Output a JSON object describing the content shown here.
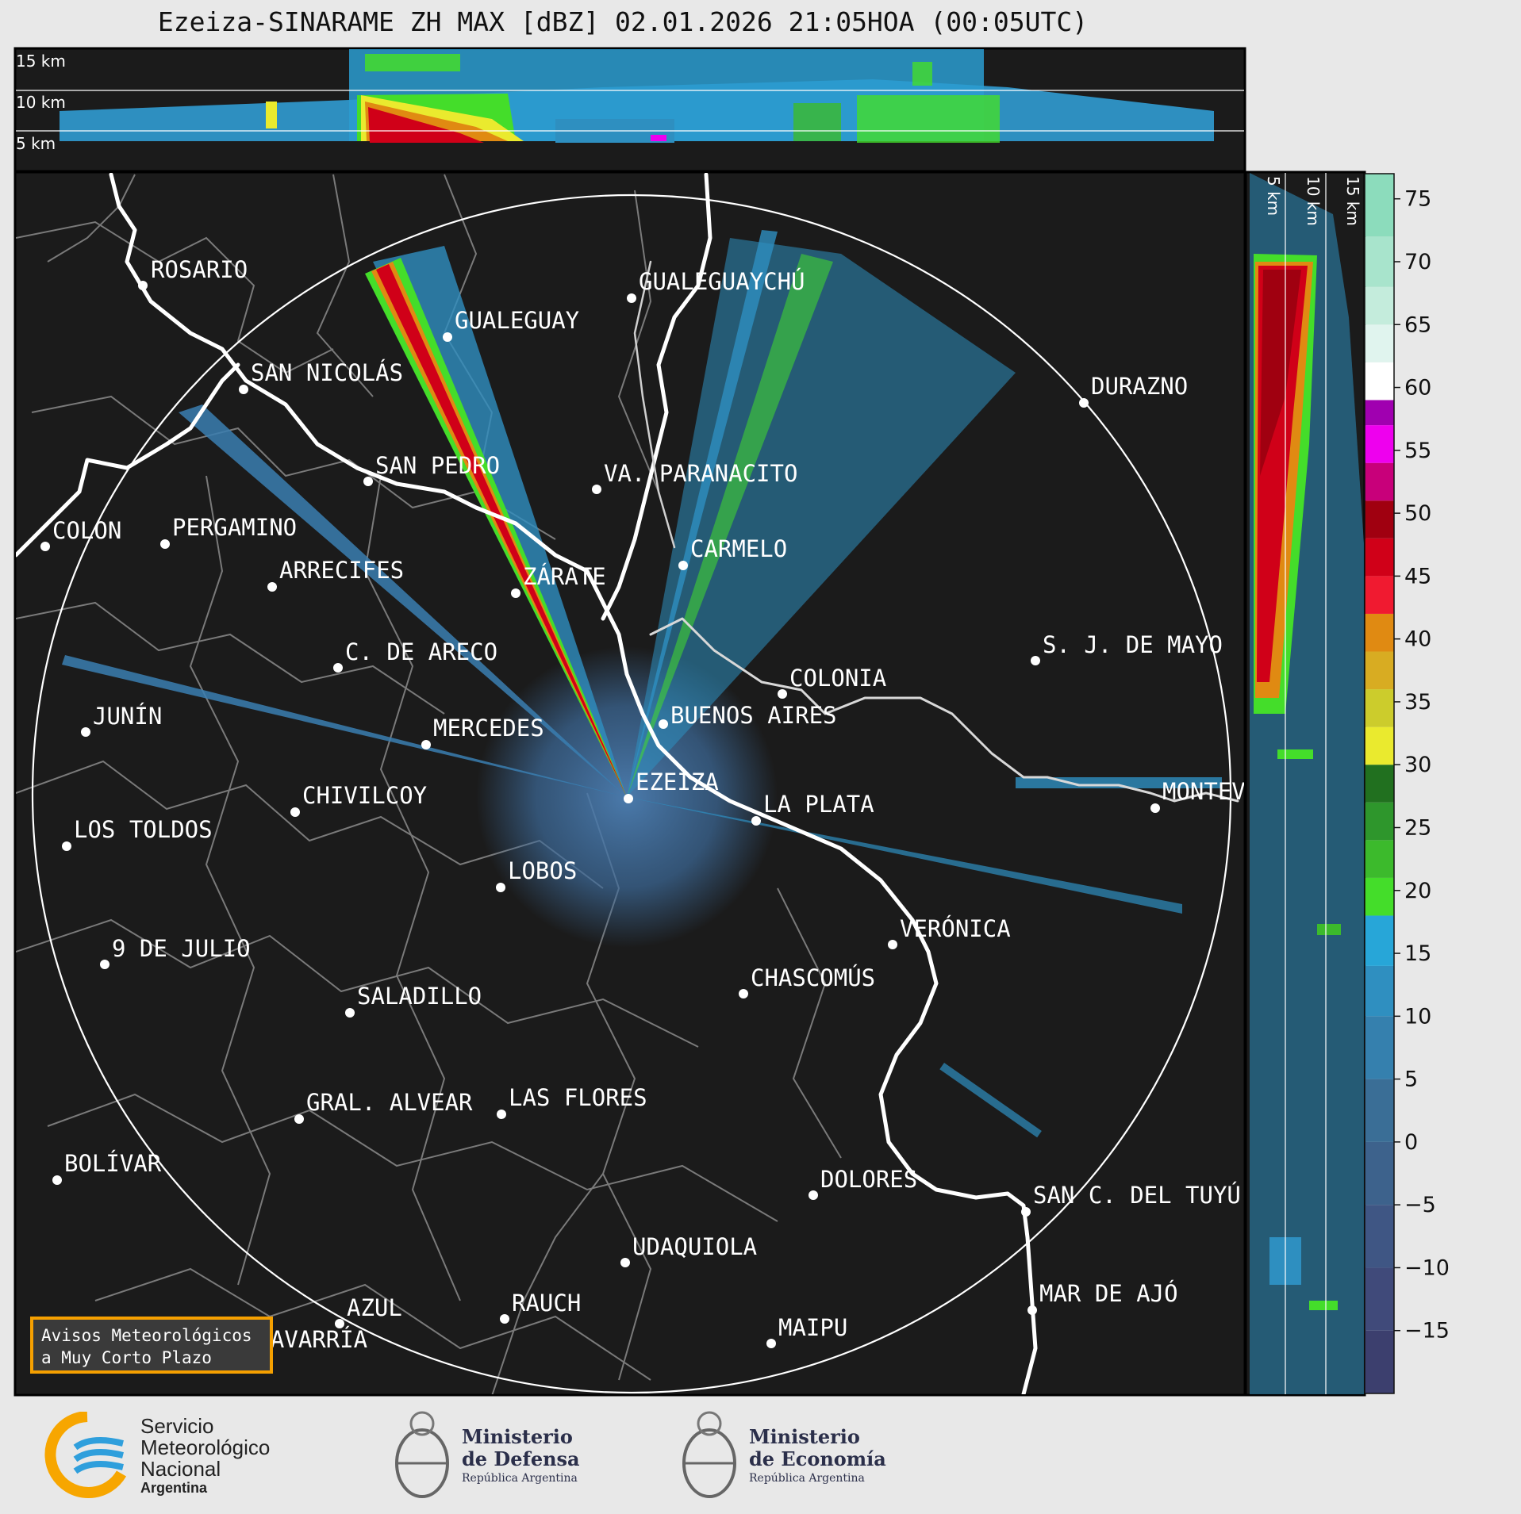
{
  "title": "Ezeiza-SINARAME ZH MAX [dBZ] 02.01.2026 21:05HOA (00:05UTC)",
  "top_panel_labels": [
    "15 km",
    "10 km",
    "5 km"
  ],
  "side_panel_labels": [
    "5 km",
    "10 km",
    "15 km"
  ],
  "cities": [
    {
      "name": "ROSARIO"
    },
    {
      "name": "GUALEGUAYCHÚ"
    },
    {
      "name": "GUALEGUAY"
    },
    {
      "name": "SAN NICOLÁS"
    },
    {
      "name": "DURAZNO"
    },
    {
      "name": "SAN PEDRO"
    },
    {
      "name": "VA. PARANACITO"
    },
    {
      "name": "COLON"
    },
    {
      "name": "PERGAMINO"
    },
    {
      "name": "CARMELO"
    },
    {
      "name": "ARRECIFES"
    },
    {
      "name": "ZÁRATE"
    },
    {
      "name": "S. J. DE MAYO"
    },
    {
      "name": "C. DE ARECO"
    },
    {
      "name": "COLONIA"
    },
    {
      "name": "JUNÍN"
    },
    {
      "name": "BUENOS AIRES"
    },
    {
      "name": "MERCEDES"
    },
    {
      "name": "EZEIZA"
    },
    {
      "name": "MONTEVIDEO"
    },
    {
      "name": "CHIVILCOY"
    },
    {
      "name": "LA PLATA"
    },
    {
      "name": "LOS TOLDOS"
    },
    {
      "name": "LOBOS"
    },
    {
      "name": "VERÓNICA"
    },
    {
      "name": "9 DE JULIO"
    },
    {
      "name": "CHASCOMÚS"
    },
    {
      "name": "SALADILLO"
    },
    {
      "name": "GRAL. ALVEAR"
    },
    {
      "name": "LAS FLORES"
    },
    {
      "name": "BOLÍVAR"
    },
    {
      "name": "DOLORES"
    },
    {
      "name": "SAN C. DEL TUYÚ"
    },
    {
      "name": "UDAQUIOLA"
    },
    {
      "name": "MAR DE AJÓ"
    },
    {
      "name": "AZUL"
    },
    {
      "name": "RAUCH"
    },
    {
      "name": "OLAVARRÍA"
    },
    {
      "name": "MAIPU"
    }
  ],
  "colorbar": {
    "unit": "dBZ",
    "ticks": [
      "75",
      "70",
      "65",
      "60",
      "55",
      "50",
      "45",
      "40",
      "35",
      "30",
      "25",
      "20",
      "15",
      "10",
      "5",
      "0",
      "−5",
      "−10",
      "−15"
    ],
    "range": [
      -20,
      77
    ],
    "bands": [
      {
        "from": -20,
        "to": -15,
        "color": "#3c3f6e"
      },
      {
        "from": -15,
        "to": -10,
        "color": "#404a7a"
      },
      {
        "from": -10,
        "to": -5,
        "color": "#3f5684"
      },
      {
        "from": -5,
        "to": 0,
        "color": "#3d628c"
      },
      {
        "from": 0,
        "to": 5,
        "color": "#3a6e96"
      },
      {
        "from": 5,
        "to": 10,
        "color": "#3580ae"
      },
      {
        "from": 10,
        "to": 14,
        "color": "#2f8fc0"
      },
      {
        "from": 14,
        "to": 18,
        "color": "#27a6d8"
      },
      {
        "from": 18,
        "to": 21,
        "color": "#44dd2a"
      },
      {
        "from": 21,
        "to": 24,
        "color": "#3cba2c"
      },
      {
        "from": 24,
        "to": 27,
        "color": "#2e962c"
      },
      {
        "from": 27,
        "to": 30,
        "color": "#21701f"
      },
      {
        "from": 30,
        "to": 33,
        "color": "#eaea2e"
      },
      {
        "from": 33,
        "to": 36,
        "color": "#cccc2c"
      },
      {
        "from": 36,
        "to": 39,
        "color": "#d8ac22"
      },
      {
        "from": 39,
        "to": 42,
        "color": "#e08a12"
      },
      {
        "from": 42,
        "to": 45,
        "color": "#f01a30"
      },
      {
        "from": 45,
        "to": 48,
        "color": "#d00018"
      },
      {
        "from": 48,
        "to": 51,
        "color": "#a00010"
      },
      {
        "from": 51,
        "to": 54,
        "color": "#c8007a"
      },
      {
        "from": 54,
        "to": 57,
        "color": "#ee00ee"
      },
      {
        "from": 57,
        "to": 59,
        "color": "#a000b0"
      },
      {
        "from": 59,
        "to": 62,
        "color": "#ffffff"
      },
      {
        "from": 62,
        "to": 65,
        "color": "#e0f4ee"
      },
      {
        "from": 65,
        "to": 68,
        "color": "#c4ecdc"
      },
      {
        "from": 68,
        "to": 72,
        "color": "#a8e4cc"
      },
      {
        "from": 72,
        "to": 77,
        "color": "#8cdcbc"
      }
    ]
  },
  "aviso": {
    "line1": "Avisos Meteorológicos",
    "line2": "a Muy Corto Plazo"
  },
  "logos": {
    "smn": {
      "line1": "Servicio",
      "line2": "Meteorológico",
      "line3": "Nacional",
      "line4": "Argentina"
    },
    "defensa": {
      "line1": "Ministerio",
      "line2": "de Defensa",
      "line3": "República Argentina"
    },
    "economia": {
      "line1": "Ministerio",
      "line2": "de Economía",
      "line3": "República Argentina"
    }
  }
}
